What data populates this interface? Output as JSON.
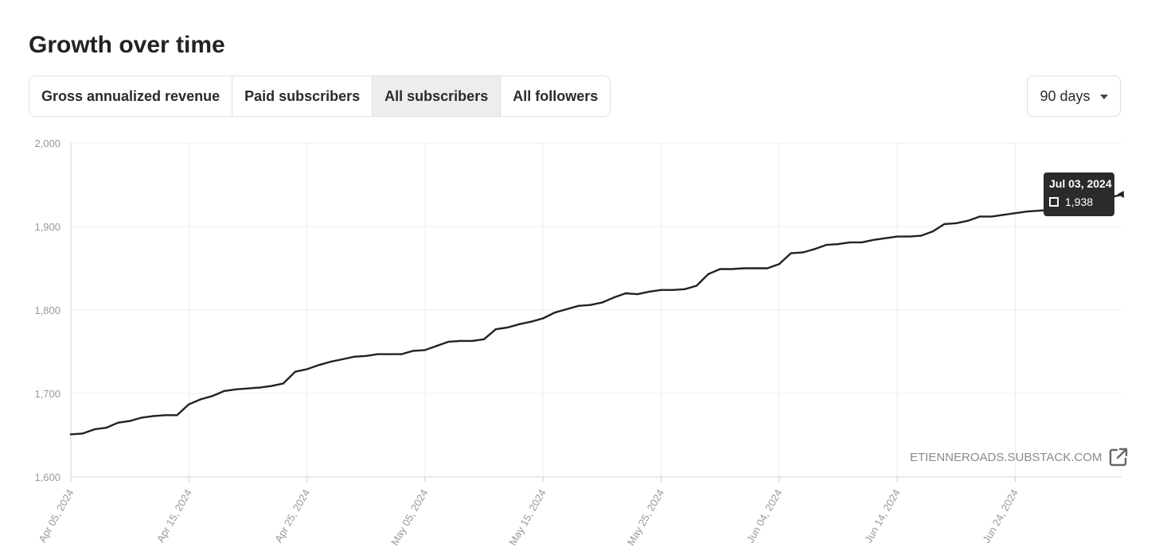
{
  "page": {
    "title": "Growth over time"
  },
  "tabs": [
    {
      "label": "Gross annualized revenue",
      "active": false
    },
    {
      "label": "Paid subscribers",
      "active": false
    },
    {
      "label": "All subscribers",
      "active": true
    },
    {
      "label": "All followers",
      "active": false
    }
  ],
  "range_select": {
    "value": "90 days",
    "icon": "caret-down-icon"
  },
  "watermark": {
    "text": "ETIENNEROADS.SUBSTACK.COM",
    "icon": "external-link-icon"
  },
  "tooltip": {
    "date": "Jul 03, 2024",
    "value": "1,938"
  },
  "colors": {
    "line": "#222222",
    "grid": "#ececec",
    "axis_text": "#999999",
    "tooltip_bg": "#2b2b2b",
    "active_tab": "#ededed"
  },
  "chart_data": {
    "type": "line",
    "ylim": [
      1600,
      2000
    ],
    "y_ticks": [
      1600,
      1700,
      1800,
      1900,
      2000
    ],
    "y_tick_labels": [
      "1,600",
      "1,700",
      "1,800",
      "1,900",
      "2,000"
    ],
    "x_range": [
      "2024-04-05",
      "2024-07-03"
    ],
    "x_tick_labels": [
      "Apr 05, 2024",
      "Apr 15, 2024",
      "Apr 25, 2024",
      "May 05, 2024",
      "May 15, 2024",
      "May 25, 2024",
      "Jun 04, 2024",
      "Jun 14, 2024",
      "Jun 24, 2024"
    ],
    "grid": true,
    "series": [
      {
        "x": [
          "2024-04-05",
          "2024-04-06",
          "2024-04-07",
          "2024-04-08",
          "2024-04-09",
          "2024-04-10",
          "2024-04-11",
          "2024-04-12",
          "2024-04-13",
          "2024-04-14",
          "2024-04-15",
          "2024-04-16",
          "2024-04-17",
          "2024-04-18",
          "2024-04-19",
          "2024-04-20",
          "2024-04-21",
          "2024-04-22",
          "2024-04-23",
          "2024-04-24",
          "2024-04-25",
          "2024-04-26",
          "2024-04-27",
          "2024-04-28",
          "2024-04-29",
          "2024-04-30",
          "2024-05-01",
          "2024-05-02",
          "2024-05-03",
          "2024-05-04",
          "2024-05-05",
          "2024-05-06",
          "2024-05-07",
          "2024-05-08",
          "2024-05-09",
          "2024-05-10",
          "2024-05-11",
          "2024-05-12",
          "2024-05-13",
          "2024-05-14",
          "2024-05-15",
          "2024-05-16",
          "2024-05-17",
          "2024-05-18",
          "2024-05-19",
          "2024-05-20",
          "2024-05-21",
          "2024-05-22",
          "2024-05-23",
          "2024-05-24",
          "2024-05-25",
          "2024-05-26",
          "2024-05-27",
          "2024-05-28",
          "2024-05-29",
          "2024-05-30",
          "2024-05-31",
          "2024-06-01",
          "2024-06-02",
          "2024-06-03",
          "2024-06-04",
          "2024-06-05",
          "2024-06-06",
          "2024-06-07",
          "2024-06-08",
          "2024-06-09",
          "2024-06-10",
          "2024-06-11",
          "2024-06-12",
          "2024-06-13",
          "2024-06-14",
          "2024-06-15",
          "2024-06-16",
          "2024-06-17",
          "2024-06-18",
          "2024-06-19",
          "2024-06-20",
          "2024-06-21",
          "2024-06-22",
          "2024-06-23",
          "2024-06-24",
          "2024-06-25",
          "2024-06-26",
          "2024-06-27",
          "2024-06-28",
          "2024-06-29",
          "2024-06-30",
          "2024-07-01",
          "2024-07-02",
          "2024-07-03"
        ],
        "values": [
          1651,
          1652,
          1657,
          1659,
          1665,
          1667,
          1671,
          1673,
          1674,
          1674,
          1687,
          1693,
          1697,
          1703,
          1705,
          1706,
          1707,
          1709,
          1712,
          1726,
          1729,
          1734,
          1738,
          1741,
          1744,
          1745,
          1747,
          1747,
          1747,
          1751,
          1752,
          1757,
          1762,
          1763,
          1763,
          1765,
          1777,
          1779,
          1783,
          1786,
          1790,
          1797,
          1801,
          1805,
          1806,
          1809,
          1815,
          1820,
          1819,
          1822,
          1824,
          1824,
          1825,
          1829,
          1843,
          1849,
          1849,
          1850,
          1850,
          1850,
          1855,
          1868,
          1869,
          1873,
          1878,
          1879,
          1881,
          1881,
          1884,
          1886,
          1888,
          1888,
          1889,
          1894,
          1903,
          1904,
          1907,
          1912,
          1912,
          1914,
          1916,
          1918,
          1919,
          1920,
          1921,
          1923,
          1925,
          1929,
          1935,
          1938
        ]
      }
    ]
  }
}
